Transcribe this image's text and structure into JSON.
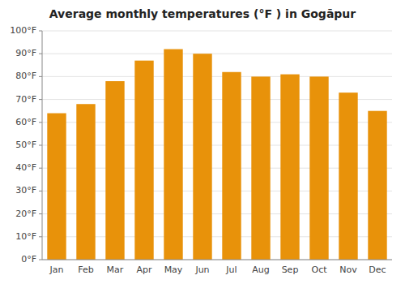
{
  "chart_data": {
    "type": "bar",
    "title": "Average monthly temperatures (°F ) in Gogāpur",
    "categories": [
      "Jan",
      "Feb",
      "Mar",
      "Apr",
      "May",
      "Jun",
      "Jul",
      "Aug",
      "Sep",
      "Oct",
      "Nov",
      "Dec"
    ],
    "values": [
      64,
      68,
      78,
      87,
      92,
      90,
      82,
      80,
      81,
      80,
      73,
      65
    ],
    "color": "#E8920A",
    "ylim": [
      0,
      100
    ],
    "yticks": [
      {
        "value": 0,
        "label": "0°F"
      },
      {
        "value": 10,
        "label": "10°F"
      },
      {
        "value": 20,
        "label": "20°F"
      },
      {
        "value": 30,
        "label": "30°F"
      },
      {
        "value": 40,
        "label": "40°F"
      },
      {
        "value": 50,
        "label": "50°F"
      },
      {
        "value": 60,
        "label": "60°F"
      },
      {
        "value": 70,
        "label": "70°F"
      },
      {
        "value": 80,
        "label": "80°F"
      },
      {
        "value": 90,
        "label": "90°F"
      },
      {
        "value": 100,
        "label": "100°F"
      }
    ],
    "grid": true
  }
}
